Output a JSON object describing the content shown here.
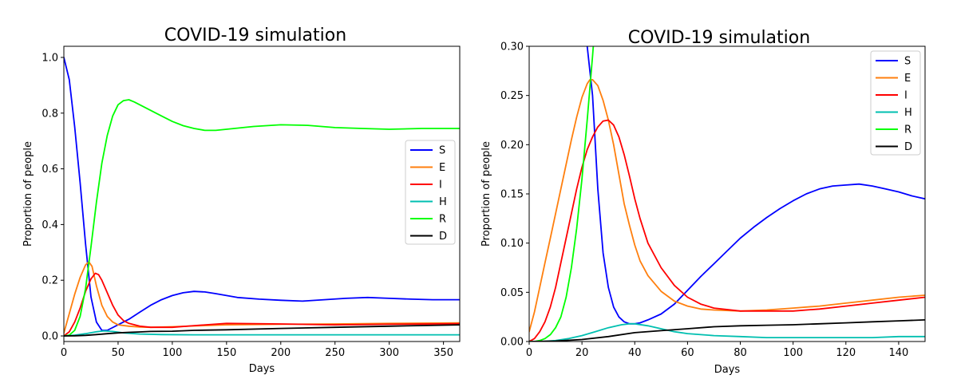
{
  "colors": {
    "S": "#0000ff",
    "E": "#ff7f0e",
    "I": "#ff0000",
    "H": "#00bfb0",
    "R": "#00ff00",
    "D": "#000000"
  },
  "chart_data": [
    {
      "type": "line",
      "title": "COVID-19 simulation",
      "xlabel": "Days",
      "ylabel": "Proportion of people",
      "xlim": [
        0,
        365
      ],
      "ylim": [
        -0.02,
        1.04
      ],
      "xticks": [
        0,
        50,
        100,
        150,
        200,
        250,
        300,
        350
      ],
      "xtick_labels": [
        "0",
        "50",
        "100",
        "150",
        "200",
        "250",
        "300",
        "350"
      ],
      "yticks": [
        0.0,
        0.2,
        0.4,
        0.6,
        0.8,
        1.0
      ],
      "ytick_labels": [
        "0.0",
        "0.2",
        "0.4",
        "0.6",
        "0.8",
        "1.0"
      ],
      "legend_position": "center-right",
      "grid": false,
      "series": [
        {
          "name": "S",
          "x": [
            0,
            5,
            10,
            15,
            20,
            25,
            30,
            35,
            40,
            45,
            50,
            60,
            70,
            80,
            90,
            100,
            110,
            120,
            130,
            140,
            150,
            160,
            180,
            200,
            220,
            240,
            260,
            280,
            300,
            320,
            340,
            365
          ],
          "values": [
            1.0,
            0.92,
            0.75,
            0.55,
            0.33,
            0.14,
            0.05,
            0.02,
            0.02,
            0.03,
            0.04,
            0.06,
            0.085,
            0.11,
            0.13,
            0.145,
            0.155,
            0.16,
            0.158,
            0.152,
            0.145,
            0.138,
            0.132,
            0.128,
            0.125,
            0.13,
            0.135,
            0.138,
            0.135,
            0.132,
            0.13,
            0.13
          ]
        },
        {
          "name": "E",
          "x": [
            0,
            5,
            10,
            15,
            20,
            23,
            26,
            30,
            35,
            40,
            45,
            50,
            60,
            70,
            80,
            100,
            120,
            150,
            200,
            250,
            300,
            365
          ],
          "values": [
            0.01,
            0.08,
            0.15,
            0.21,
            0.255,
            0.266,
            0.25,
            0.18,
            0.11,
            0.07,
            0.05,
            0.04,
            0.035,
            0.032,
            0.031,
            0.033,
            0.036,
            0.04,
            0.042,
            0.043,
            0.045,
            0.047
          ]
        },
        {
          "name": "I",
          "x": [
            0,
            5,
            10,
            15,
            20,
            25,
            29,
            32,
            35,
            40,
            45,
            50,
            55,
            60,
            70,
            80,
            100,
            120,
            150,
            200,
            250,
            300,
            365
          ],
          "values": [
            0.0,
            0.015,
            0.05,
            0.1,
            0.16,
            0.205,
            0.225,
            0.22,
            0.2,
            0.155,
            0.11,
            0.075,
            0.055,
            0.045,
            0.035,
            0.031,
            0.031,
            0.037,
            0.045,
            0.043,
            0.04,
            0.042,
            0.044
          ]
        },
        {
          "name": "H",
          "x": [
            0,
            10,
            20,
            30,
            37,
            45,
            55,
            70,
            90,
            120,
            150,
            200,
            250,
            300,
            365
          ],
          "values": [
            0.0,
            0.003,
            0.008,
            0.015,
            0.018,
            0.016,
            0.011,
            0.007,
            0.005,
            0.004,
            0.004,
            0.004,
            0.004,
            0.004,
            0.004
          ]
        },
        {
          "name": "R",
          "x": [
            0,
            5,
            10,
            15,
            20,
            25,
            30,
            35,
            40,
            45,
            50,
            55,
            60,
            65,
            70,
            80,
            90,
            100,
            110,
            120,
            130,
            140,
            150,
            175,
            200,
            225,
            250,
            275,
            300,
            330,
            365
          ],
          "values": [
            0.0,
            0.003,
            0.02,
            0.07,
            0.17,
            0.32,
            0.48,
            0.62,
            0.72,
            0.79,
            0.83,
            0.845,
            0.848,
            0.84,
            0.83,
            0.81,
            0.79,
            0.77,
            0.755,
            0.745,
            0.738,
            0.738,
            0.742,
            0.752,
            0.758,
            0.756,
            0.748,
            0.745,
            0.742,
            0.745,
            0.745
          ]
        },
        {
          "name": "D",
          "x": [
            0,
            10,
            20,
            30,
            40,
            50,
            60,
            70,
            80,
            100,
            120,
            150,
            200,
            250,
            300,
            365
          ],
          "values": [
            0.0,
            0.0005,
            0.002,
            0.005,
            0.008,
            0.011,
            0.013,
            0.0145,
            0.016,
            0.017,
            0.02,
            0.022,
            0.027,
            0.031,
            0.035,
            0.04
          ]
        }
      ]
    },
    {
      "type": "line",
      "title": "COVID-19 simulation",
      "xlabel": "Days",
      "ylabel": "Proportion of people",
      "xlim": [
        0,
        150
      ],
      "ylim": [
        0.0,
        0.3
      ],
      "xticks": [
        0,
        20,
        40,
        60,
        80,
        100,
        120,
        140
      ],
      "xtick_labels": [
        "0",
        "20",
        "40",
        "60",
        "80",
        "100",
        "120",
        "140"
      ],
      "yticks": [
        0.0,
        0.05,
        0.1,
        0.15,
        0.2,
        0.25,
        0.3
      ],
      "ytick_labels": [
        "0.00",
        "0.05",
        "0.10",
        "0.15",
        "0.20",
        "0.25",
        "0.30"
      ],
      "legend_position": "top-right",
      "grid": false,
      "series": [
        {
          "name": "S",
          "x": [
            22,
            24,
            26,
            28,
            30,
            32,
            34,
            36,
            38,
            40,
            42,
            45,
            50,
            55,
            60,
            65,
            70,
            75,
            80,
            85,
            90,
            95,
            100,
            105,
            110,
            115,
            120,
            125,
            130,
            135,
            140,
            145,
            150
          ],
          "values": [
            0.3,
            0.25,
            0.155,
            0.09,
            0.055,
            0.035,
            0.025,
            0.02,
            0.018,
            0.018,
            0.019,
            0.022,
            0.028,
            0.038,
            0.052,
            0.066,
            0.079,
            0.092,
            0.105,
            0.116,
            0.126,
            0.135,
            0.143,
            0.15,
            0.155,
            0.158,
            0.159,
            0.16,
            0.158,
            0.155,
            0.152,
            0.148,
            0.145
          ]
        },
        {
          "name": "E",
          "x": [
            0,
            2,
            4,
            6,
            8,
            10,
            12,
            14,
            16,
            18,
            20,
            22,
            23,
            24,
            26,
            28,
            30,
            32,
            34,
            36,
            38,
            40,
            42,
            45,
            50,
            55,
            60,
            65,
            70,
            80,
            90,
            100,
            110,
            120,
            130,
            140,
            150
          ],
          "values": [
            0.01,
            0.03,
            0.055,
            0.08,
            0.105,
            0.13,
            0.155,
            0.18,
            0.205,
            0.228,
            0.248,
            0.262,
            0.266,
            0.266,
            0.26,
            0.245,
            0.225,
            0.2,
            0.17,
            0.14,
            0.118,
            0.098,
            0.082,
            0.067,
            0.051,
            0.041,
            0.036,
            0.033,
            0.032,
            0.031,
            0.032,
            0.034,
            0.036,
            0.039,
            0.042,
            0.045,
            0.047
          ]
        },
        {
          "name": "I",
          "x": [
            0,
            2,
            4,
            6,
            8,
            10,
            12,
            14,
            16,
            18,
            20,
            22,
            24,
            26,
            28,
            30,
            32,
            34,
            36,
            38,
            40,
            42,
            45,
            50,
            55,
            60,
            65,
            70,
            80,
            90,
            100,
            110,
            120,
            130,
            140,
            150
          ],
          "values": [
            0.0,
            0.003,
            0.01,
            0.02,
            0.035,
            0.055,
            0.08,
            0.105,
            0.13,
            0.155,
            0.177,
            0.195,
            0.208,
            0.218,
            0.224,
            0.225,
            0.22,
            0.208,
            0.19,
            0.168,
            0.145,
            0.125,
            0.1,
            0.075,
            0.057,
            0.045,
            0.038,
            0.034,
            0.031,
            0.031,
            0.031,
            0.033,
            0.036,
            0.039,
            0.042,
            0.045
          ]
        },
        {
          "name": "H",
          "x": [
            0,
            5,
            10,
            15,
            20,
            25,
            30,
            35,
            38,
            40,
            45,
            50,
            55,
            60,
            70,
            80,
            90,
            100,
            110,
            120,
            130,
            140,
            150
          ],
          "values": [
            0.0,
            0.0,
            0.001,
            0.003,
            0.006,
            0.01,
            0.014,
            0.017,
            0.018,
            0.018,
            0.016,
            0.013,
            0.01,
            0.008,
            0.006,
            0.005,
            0.004,
            0.004,
            0.004,
            0.004,
            0.004,
            0.005,
            0.005
          ]
        },
        {
          "name": "R",
          "x": [
            0,
            2,
            4,
            6,
            8,
            10,
            12,
            14,
            16,
            18,
            20,
            22,
            24,
            26
          ],
          "values": [
            0.0,
            0.0,
            0.001,
            0.003,
            0.007,
            0.014,
            0.025,
            0.045,
            0.075,
            0.115,
            0.165,
            0.225,
            0.29,
            0.36
          ]
        },
        {
          "name": "D",
          "x": [
            0,
            10,
            20,
            30,
            40,
            50,
            60,
            70,
            80,
            90,
            100,
            110,
            120,
            130,
            140,
            150
          ],
          "values": [
            0.0,
            0.0005,
            0.002,
            0.005,
            0.009,
            0.011,
            0.013,
            0.015,
            0.016,
            0.0165,
            0.017,
            0.018,
            0.019,
            0.02,
            0.021,
            0.022
          ]
        }
      ]
    }
  ]
}
